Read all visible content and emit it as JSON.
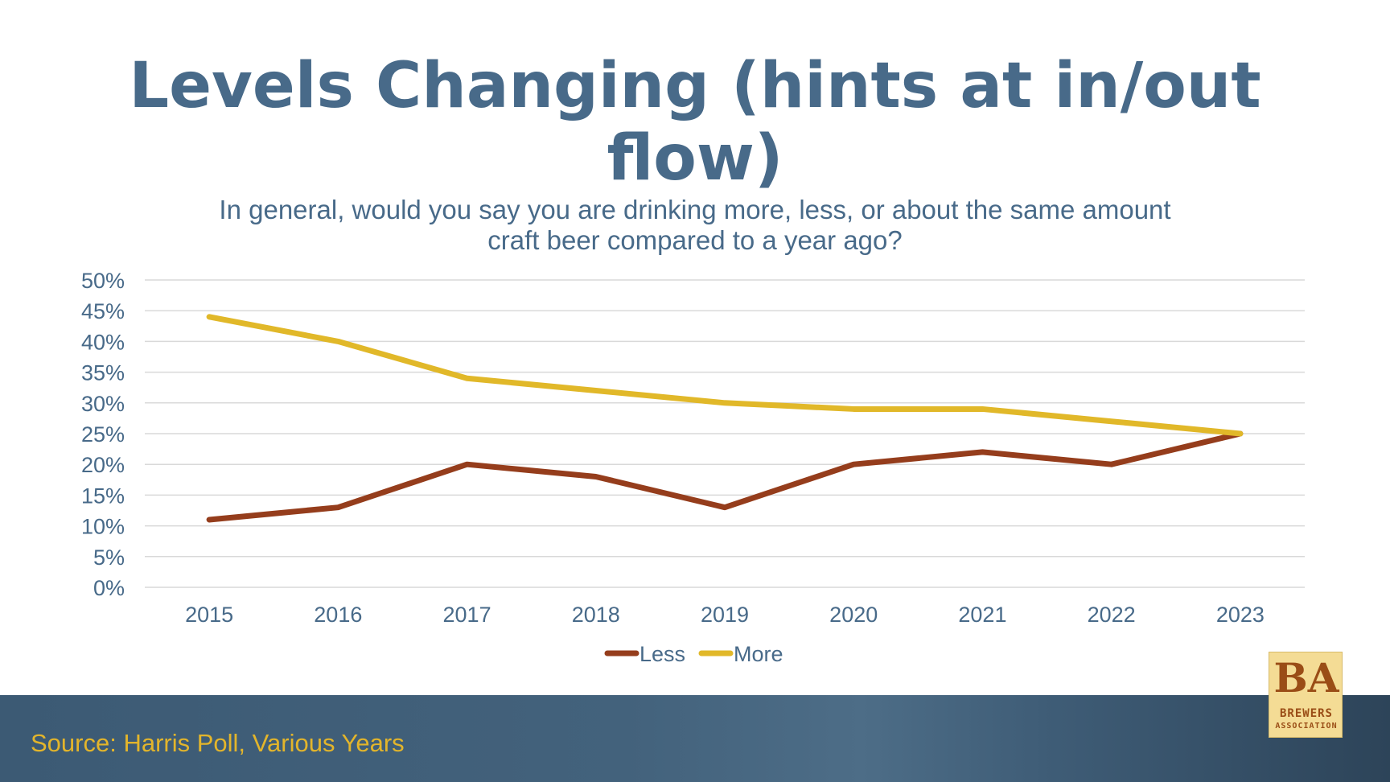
{
  "slide": {
    "title": "Levels Changing (hints at in/out flow)",
    "subtitle": "In general, would you say you are drinking more, less, or about the same amount craft beer compared to a year ago?",
    "source": "Source: Harris Poll, Various Years"
  },
  "logo": {
    "mark": "BA",
    "line1": "BREWERS",
    "line2": "ASSOCIATION"
  },
  "colors": {
    "title": "#486a89",
    "axis_text": "#486a89",
    "grid": "#d9d9d9",
    "less": "#953d1c",
    "more": "#e1b829",
    "source": "#e3b52b"
  },
  "chart_data": {
    "type": "line",
    "title": "In general, would you say you are drinking more, less, or about the same amount craft beer compared to a year ago?",
    "x": [
      "2015",
      "2016",
      "2017",
      "2018",
      "2019",
      "2020",
      "2021",
      "2022",
      "2023"
    ],
    "series": [
      {
        "name": "Less",
        "values": [
          11,
          13,
          20,
          18,
          13,
          20,
          22,
          20,
          25
        ]
      },
      {
        "name": "More",
        "values": [
          44,
          40,
          34,
          32,
          30,
          29,
          29,
          27,
          25
        ]
      }
    ],
    "xlabel": "",
    "ylabel": "",
    "ylim": [
      0,
      50
    ],
    "yticks": [
      "0%",
      "5%",
      "10%",
      "15%",
      "20%",
      "25%",
      "30%",
      "35%",
      "40%",
      "45%",
      "50%"
    ],
    "grid": true,
    "legend": "bottom-center"
  }
}
